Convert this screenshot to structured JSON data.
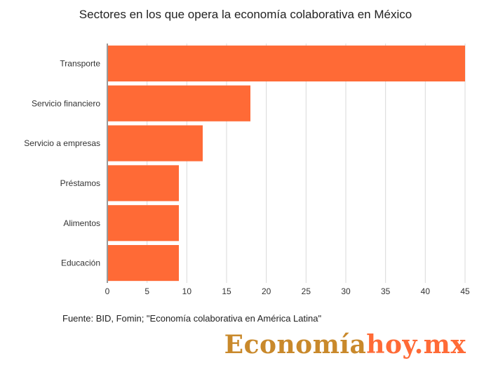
{
  "chart_data": {
    "type": "bar",
    "orientation": "horizontal",
    "title": "Sectores en los que opera la economía colaborativa en México",
    "categories": [
      "Transporte",
      "Servicio financiero",
      "Servicio a empresas",
      "Préstamos",
      "Alimentos",
      "Educación"
    ],
    "values": [
      45,
      18,
      12,
      9,
      9,
      9
    ],
    "xlim": [
      0,
      45
    ],
    "xticks": [
      "0",
      "5",
      "10",
      "15",
      "20",
      "25",
      "30",
      "35",
      "40",
      "45"
    ],
    "xlabel": "",
    "ylabel": "",
    "grid": "vertical",
    "bar_color": "#ff6a36",
    "grid_color": "#d9d9d9"
  },
  "source": "Fuente: BID, Fomin; \"Economía colaborativa en América Latina\"",
  "logo": {
    "part1": "Economía",
    "part2": "hoy.mx",
    "color1": "#c9892b",
    "color2": "#ff6a36"
  }
}
